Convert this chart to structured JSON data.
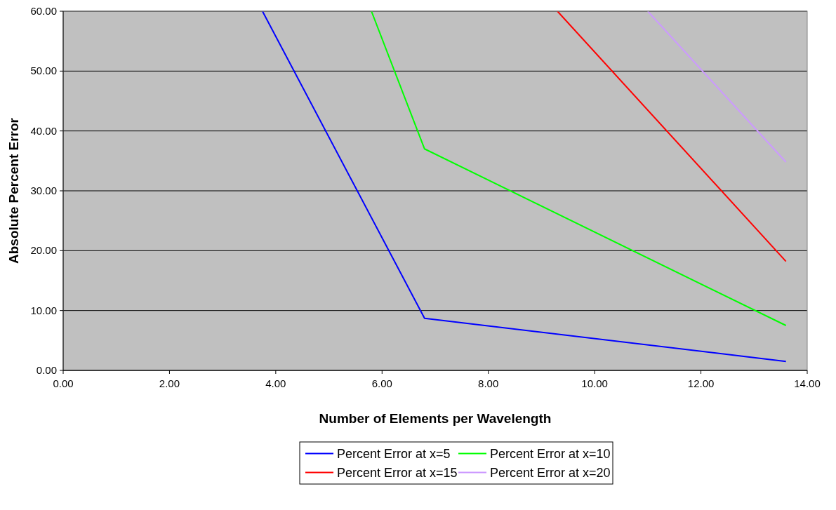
{
  "chart_data": {
    "type": "line",
    "xlabel": "Number of Elements per Wavelength",
    "ylabel": "Absolute Percent Error",
    "xlim": [
      0,
      14
    ],
    "xticks": [
      {
        "value": 0,
        "label": "0.00"
      },
      {
        "value": 2,
        "label": "2.00"
      },
      {
        "value": 4,
        "label": "4.00"
      },
      {
        "value": 6,
        "label": "6.00"
      },
      {
        "value": 8,
        "label": "8.00"
      },
      {
        "value": 10,
        "label": "10.00"
      },
      {
        "value": 12,
        "label": "12.00"
      },
      {
        "value": 14,
        "label": "14.00"
      }
    ],
    "ylim": [
      0,
      60
    ],
    "yticks": [
      {
        "value": 0,
        "label": "0.00"
      },
      {
        "value": 10,
        "label": "10.00"
      },
      {
        "value": 20,
        "label": "20.00"
      },
      {
        "value": 30,
        "label": "30.00"
      },
      {
        "value": 40,
        "label": "40.00"
      },
      {
        "value": 50,
        "label": "50.00"
      },
      {
        "value": 60,
        "label": "60.00"
      }
    ],
    "grid": "y",
    "legend": "bottom",
    "marker": "none",
    "line_style": "solid",
    "series": [
      {
        "name": "Percent Error at x=5",
        "color": "#0000ff",
        "x": [
          3.75,
          6.8,
          13.6
        ],
        "values": [
          60,
          8.7,
          1.5
        ]
      },
      {
        "name": "Percent Error at x=10",
        "color": "#00ff00",
        "x": [
          5.8,
          6.8,
          13.6
        ],
        "values": [
          60,
          37,
          7.5
        ]
      },
      {
        "name": "Percent Error at x=15",
        "color": "#ff0000",
        "x": [
          9.3,
          13.6
        ],
        "values": [
          60,
          18.2
        ]
      },
      {
        "name": "Percent Error at x=20",
        "color": "#cc99ff",
        "x": [
          11,
          13.6
        ],
        "values": [
          60,
          34.8
        ]
      }
    ]
  }
}
